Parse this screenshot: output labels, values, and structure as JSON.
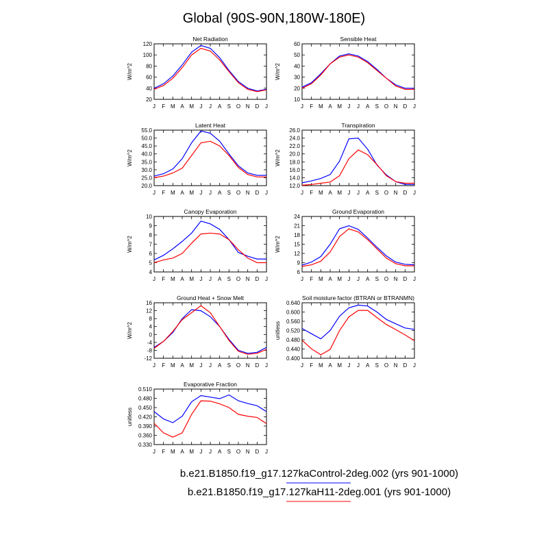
{
  "title": "Global (90S-90N,180W-180E)",
  "colors": {
    "control": "#0000ff",
    "experiment": "#ff0000"
  },
  "legend": {
    "entries": [
      {
        "label": "b.e21.B1850.f19_g17.127kaControl-2deg.002 (yrs 901-1000)",
        "color": "#0000ff"
      },
      {
        "label": "b.e21.B1850.f19_g17.127kaH11-2deg.001 (yrs 901-1000)",
        "color": "#ff0000"
      }
    ]
  },
  "months": [
    "J",
    "F",
    "M",
    "A",
    "M",
    "J",
    "J",
    "A",
    "S",
    "O",
    "N",
    "D",
    "J"
  ],
  "chart_data": [
    {
      "type": "line",
      "title": "Net Radiation",
      "ylabel": "W/m^2",
      "ylim": [
        20,
        120
      ],
      "yticks": [
        20,
        40,
        60,
        80,
        100,
        120
      ],
      "ytick_labels": [
        "20",
        "40",
        "60",
        "80",
        "100",
        "120"
      ],
      "series": [
        {
          "values": [
            40,
            48,
            62,
            82,
            105,
            117,
            112,
            95,
            72,
            52,
            40,
            35,
            38
          ]
        },
        {
          "values": [
            38,
            45,
            58,
            77,
            100,
            112,
            107,
            91,
            70,
            50,
            38,
            34,
            37
          ]
        }
      ]
    },
    {
      "type": "line",
      "title": "Sensible Heat",
      "ylabel": "W/m^2",
      "ylim": [
        10,
        60
      ],
      "yticks": [
        10,
        20,
        30,
        40,
        50,
        60
      ],
      "ytick_labels": [
        "10",
        "20",
        "30",
        "40",
        "50",
        "60"
      ],
      "series": [
        {
          "values": [
            21,
            25,
            33,
            42,
            49,
            51,
            49,
            44,
            37,
            29,
            23,
            20,
            20
          ]
        },
        {
          "values": [
            20,
            24,
            32,
            42,
            48,
            50,
            48,
            43,
            36,
            29,
            22,
            19,
            19
          ]
        }
      ]
    },
    {
      "type": "line",
      "title": "Latent Heat",
      "ylabel": "W/m^2",
      "ylim": [
        20,
        55
      ],
      "yticks": [
        20,
        25,
        30,
        35,
        40,
        45,
        50,
        55
      ],
      "ytick_labels": [
        "20.0",
        "25.0",
        "30.0",
        "35.0",
        "40.0",
        "45.0",
        "50.0",
        "55.0"
      ],
      "series": [
        {
          "values": [
            26,
            27.5,
            30.5,
            37,
            47,
            54.5,
            53,
            48,
            40,
            32.5,
            28,
            26.5,
            26.5
          ]
        },
        {
          "values": [
            25,
            26,
            28,
            31,
            39,
            47,
            48,
            45,
            39,
            31.5,
            27,
            25.5,
            25.5
          ]
        }
      ]
    },
    {
      "type": "line",
      "title": "Transpiration",
      "ylabel": "W/m^2",
      "ylim": [
        12,
        26
      ],
      "yticks": [
        12,
        14,
        16,
        18,
        20,
        22,
        24,
        26
      ],
      "ytick_labels": [
        "12.0",
        "14.0",
        "16.0",
        "18.0",
        "20.0",
        "22.0",
        "24.0",
        "26.0"
      ],
      "series": [
        {
          "values": [
            12.7,
            13.2,
            13.8,
            14.8,
            18.2,
            23.8,
            24,
            21.2,
            17.2,
            14.7,
            13,
            12.3,
            12.3
          ]
        },
        {
          "values": [
            12.1,
            12.3,
            12.6,
            12.9,
            14.5,
            18.8,
            21,
            19.8,
            17.3,
            14.5,
            13,
            12.6,
            12.6
          ]
        }
      ]
    },
    {
      "type": "line",
      "title": "Canopy Evaporation",
      "ylabel": "W/m^2",
      "ylim": [
        4,
        10
      ],
      "yticks": [
        4,
        5,
        6,
        7,
        8,
        9,
        10
      ],
      "ytick_labels": [
        "4",
        "5",
        "6",
        "7",
        "8",
        "9",
        "10"
      ],
      "series": [
        {
          "values": [
            5.3,
            5.8,
            6.5,
            7.3,
            8.2,
            9.5,
            9.2,
            8.6,
            7.5,
            6.1,
            5.7,
            5.4,
            5.4
          ]
        },
        {
          "values": [
            5.0,
            5.3,
            5.5,
            6.0,
            7.1,
            8.1,
            8.2,
            8.1,
            7.5,
            6.4,
            5.5,
            5.0,
            5.0
          ]
        }
      ]
    },
    {
      "type": "line",
      "title": "Ground Evaporation",
      "ylabel": "W/m^2",
      "ylim": [
        6,
        24
      ],
      "yticks": [
        6,
        9,
        12,
        15,
        18,
        21,
        24
      ],
      "ytick_labels": [
        "6",
        "9",
        "12",
        "15",
        "18",
        "21",
        "24"
      ],
      "series": [
        {
          "values": [
            8.2,
            9.2,
            11,
            15,
            20,
            21,
            19.8,
            17,
            14,
            11.2,
            9.2,
            8.5,
            8.3
          ]
        },
        {
          "values": [
            7.8,
            8.3,
            9.5,
            12.5,
            17.5,
            20,
            19,
            16.5,
            13.5,
            10.5,
            8.7,
            8,
            8
          ]
        }
      ]
    },
    {
      "type": "line",
      "title": "Ground Heat + Snow Melt",
      "ylabel": "W/m^2",
      "ylim": [
        -12,
        16
      ],
      "yticks": [
        -12,
        -8,
        -4,
        0,
        4,
        8,
        12,
        16
      ],
      "ytick_labels": [
        "-12",
        "-8",
        "-4",
        "0",
        "4",
        "8",
        "12",
        "16"
      ],
      "series": [
        {
          "values": [
            -6.5,
            -3.5,
            1,
            8,
            12.5,
            12,
            9,
            4,
            -2.5,
            -8,
            -9.5,
            -9,
            -6.5
          ]
        },
        {
          "values": [
            -7,
            -3.5,
            1.5,
            7.5,
            11,
            14.5,
            11,
            4,
            -3,
            -8.5,
            -10,
            -9.5,
            -7.5
          ]
        }
      ]
    },
    {
      "type": "line",
      "title": "Soil moisture factor (BTRAN or BTRANMN)",
      "ylabel": "unitless",
      "ylim": [
        0.4,
        0.64
      ],
      "yticks": [
        0.4,
        0.44,
        0.48,
        0.52,
        0.56,
        0.6,
        0.64
      ],
      "ytick_labels": [
        "0.400",
        "0.440",
        "0.480",
        "0.520",
        "0.560",
        "0.600",
        "0.640"
      ],
      "series": [
        {
          "values": [
            0.529,
            0.506,
            0.484,
            0.52,
            0.582,
            0.618,
            0.63,
            0.626,
            0.6,
            0.568,
            0.549,
            0.531,
            0.525
          ]
        },
        {
          "values": [
            0.478,
            0.441,
            0.415,
            0.438,
            0.52,
            0.579,
            0.607,
            0.607,
            0.576,
            0.546,
            0.524,
            0.501,
            0.476
          ]
        }
      ]
    },
    {
      "type": "line",
      "title": "Evaporative Fraction",
      "ylabel": "unitless",
      "ylim": [
        0.33,
        0.51
      ],
      "yticks": [
        0.33,
        0.36,
        0.39,
        0.42,
        0.45,
        0.48,
        0.51
      ],
      "ytick_labels": [
        "0.330",
        "0.360",
        "0.390",
        "0.420",
        "0.450",
        "0.480",
        "0.510"
      ],
      "series": [
        {
          "values": [
            0.437,
            0.413,
            0.401,
            0.422,
            0.469,
            0.489,
            0.484,
            0.479,
            0.491,
            0.472,
            0.463,
            0.456,
            0.437
          ]
        },
        {
          "values": [
            0.399,
            0.368,
            0.354,
            0.368,
            0.428,
            0.472,
            0.471,
            0.462,
            0.45,
            0.428,
            0.422,
            0.418,
            0.398
          ]
        }
      ]
    }
  ]
}
